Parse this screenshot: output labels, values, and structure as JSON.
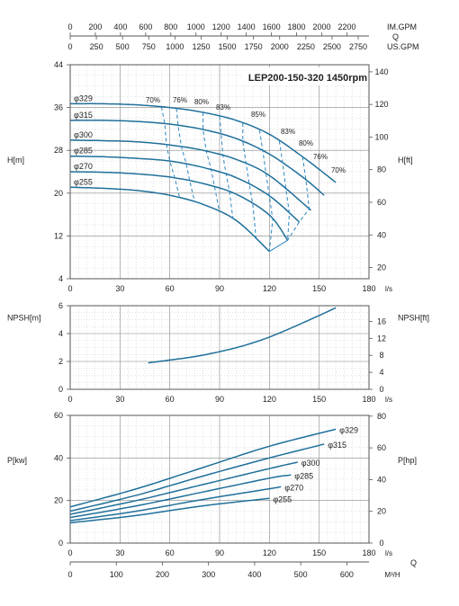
{
  "top_axes": {
    "im_gpm": {
      "label": "IM.GPM",
      "ticks": [
        0,
        200,
        400,
        600,
        800,
        1000,
        1200,
        1400,
        1600,
        1800,
        2000,
        2200
      ]
    },
    "q_label": "Q",
    "us_gpm": {
      "label": "US.GPM",
      "ticks": [
        0,
        250,
        500,
        750,
        1000,
        1250,
        1500,
        1750,
        2000,
        2250,
        2500,
        2750
      ]
    }
  },
  "bottom_axis": {
    "label": "M³/H",
    "ticks": [
      0,
      100,
      200,
      300,
      400,
      500,
      600
    ],
    "q_label": "Q"
  },
  "colors": {
    "curve": "#1f6f9a",
    "efficiency": "#2a86c2",
    "grid": "#b8b8b8",
    "frame": "#555555"
  },
  "chart_data": [
    {
      "type": "line",
      "title": "LEP200-150-320 1450rpm",
      "xlabel": "l/s",
      "ylabel": "H[m]",
      "y2label": "H[ft]",
      "xlim": [
        0,
        180
      ],
      "ylim": [
        4,
        44
      ],
      "x_ticks": [
        0,
        30,
        60,
        90,
        120,
        150,
        180
      ],
      "y_ticks": [
        4,
        12,
        20,
        28,
        36,
        44
      ],
      "y2_ticks": [
        20,
        40,
        60,
        80,
        100,
        120,
        140
      ],
      "grid": true,
      "series": [
        {
          "name": "φ329",
          "x": [
            0,
            20,
            40,
            60,
            80,
            100,
            120,
            140,
            160
          ],
          "y": [
            36.7,
            36.7,
            36.5,
            36.0,
            35.1,
            33.6,
            31.0,
            26.8,
            22.0
          ]
        },
        {
          "name": "φ315",
          "x": [
            0,
            20,
            40,
            60,
            80,
            100,
            120,
            140,
            153
          ],
          "y": [
            33.6,
            33.6,
            33.4,
            32.9,
            31.9,
            30.2,
            27.3,
            23.0,
            19.6
          ]
        },
        {
          "name": "φ300",
          "x": [
            0,
            20,
            40,
            60,
            80,
            100,
            120,
            145
          ],
          "y": [
            29.9,
            29.8,
            29.6,
            29.0,
            28.0,
            26.3,
            23.3,
            16.8
          ]
        },
        {
          "name": "φ285",
          "x": [
            0,
            20,
            40,
            60,
            80,
            100,
            120,
            138
          ],
          "y": [
            26.9,
            26.8,
            26.5,
            26.0,
            24.8,
            22.9,
            19.5,
            14.6
          ]
        },
        {
          "name": "φ270",
          "x": [
            0,
            20,
            40,
            60,
            80,
            100,
            120,
            131
          ],
          "y": [
            24.0,
            23.9,
            23.6,
            23.0,
            21.8,
            19.8,
            15.9,
            11.2
          ]
        },
        {
          "name": "φ255",
          "x": [
            0,
            20,
            40,
            60,
            80,
            100,
            120
          ],
          "y": [
            21.1,
            20.9,
            20.5,
            19.6,
            17.9,
            14.9,
            9.1
          ]
        }
      ],
      "efficiency_labels": [
        "70%",
        "76%",
        "80%",
        "83%",
        "85%",
        "83%",
        "80%",
        "76%",
        "70%"
      ]
    },
    {
      "type": "line",
      "xlabel": "l/s",
      "ylabel": "NPSH[m]",
      "y2label": "NPSH[ft]",
      "xlim": [
        0,
        180
      ],
      "ylim": [
        0,
        6
      ],
      "x_ticks": [
        0,
        30,
        60,
        90,
        120,
        150,
        180
      ],
      "y_ticks": [
        0,
        2,
        4,
        6
      ],
      "y2_ticks": [
        0,
        4,
        8,
        12,
        16
      ],
      "grid": true,
      "series": [
        {
          "x": [
            47,
            60,
            75,
            90,
            105,
            120,
            135,
            150,
            160
          ],
          "y": [
            1.9,
            2.1,
            2.35,
            2.7,
            3.15,
            3.75,
            4.5,
            5.3,
            5.85
          ]
        }
      ]
    },
    {
      "type": "line",
      "xlabel": "l/s",
      "ylabel": "P[kw]",
      "y2label": "P[hp]",
      "xlim": [
        0,
        180
      ],
      "ylim": [
        0,
        60
      ],
      "x_ticks": [
        0,
        30,
        60,
        90,
        120,
        150,
        180
      ],
      "y_ticks": [
        0,
        20,
        40,
        60
      ],
      "y2_ticks": [
        0,
        20,
        40,
        60,
        80
      ],
      "grid": true,
      "series": [
        {
          "name": "φ329",
          "x": [
            0,
            40,
            80,
            120,
            160
          ],
          "y": [
            17.0,
            25.5,
            35.5,
            45.5,
            53.5
          ]
        },
        {
          "name": "φ315",
          "x": [
            0,
            40,
            80,
            120,
            153
          ],
          "y": [
            15.0,
            22.5,
            31.5,
            40.0,
            46.5
          ]
        },
        {
          "name": "φ300",
          "x": [
            0,
            40,
            80,
            120,
            137
          ],
          "y": [
            13.5,
            20.0,
            27.5,
            35.0,
            38.0
          ]
        },
        {
          "name": "φ285",
          "x": [
            0,
            40,
            80,
            120,
            133
          ],
          "y": [
            12.0,
            17.5,
            24.0,
            30.5,
            32.0
          ]
        },
        {
          "name": "φ270",
          "x": [
            0,
            40,
            80,
            120,
            127
          ],
          "y": [
            10.5,
            15.0,
            20.5,
            25.5,
            26.5
          ]
        },
        {
          "name": "φ255",
          "x": [
            0,
            40,
            80,
            120
          ],
          "y": [
            9.5,
            13.0,
            17.5,
            21.0
          ]
        }
      ]
    }
  ]
}
